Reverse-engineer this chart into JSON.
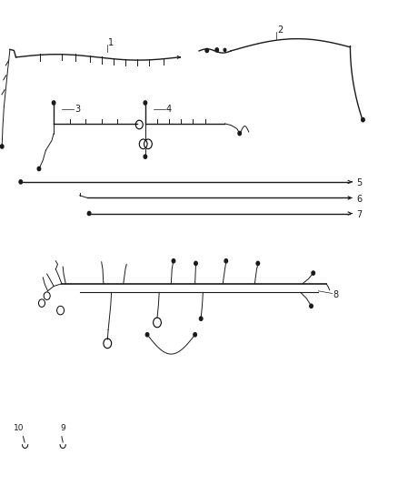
{
  "bg_color": "#ffffff",
  "line_color": "#1a1a1a",
  "label_color": "#1a1a1a",
  "figsize": [
    4.38,
    5.33
  ],
  "dpi": 100
}
